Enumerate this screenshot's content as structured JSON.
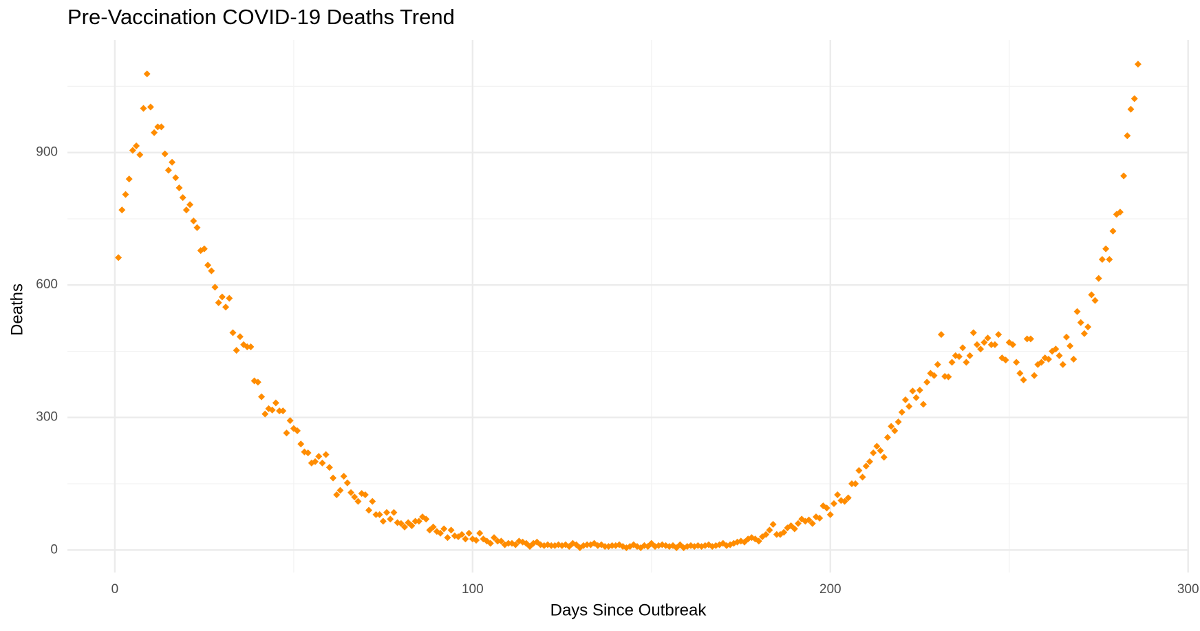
{
  "chart_data": {
    "type": "scatter",
    "title": "Pre-Vaccination COVID-19 Deaths Trend",
    "x_label": "Days Since Outbreak",
    "y_label": "Deaths",
    "xlim": [
      -13.25,
      300.25
    ],
    "ylim": [
      -51,
      1155
    ],
    "xticks": [
      0,
      100,
      200,
      300
    ],
    "yticks": [
      0,
      300,
      600,
      900
    ],
    "grid": true,
    "color": "#ff8c00",
    "marker": "diamond",
    "x": [
      1,
      2,
      3,
      4,
      5,
      6,
      7,
      8,
      9,
      10,
      11,
      12,
      13,
      14,
      15,
      16,
      17,
      18,
      19,
      20,
      21,
      22,
      23,
      24,
      25,
      26,
      27,
      28,
      29,
      30,
      31,
      32,
      33,
      34,
      35,
      36,
      37,
      38,
      39,
      40,
      41,
      42,
      43,
      44,
      45,
      46,
      47,
      48,
      49,
      50,
      51,
      52,
      53,
      54,
      55,
      56,
      57,
      58,
      59,
      60,
      61,
      62,
      63,
      64,
      65,
      66,
      67,
      68,
      69,
      70,
      71,
      72,
      73,
      74,
      75,
      76,
      77,
      78,
      79,
      80,
      81,
      82,
      83,
      84,
      85,
      86,
      87,
      88,
      89,
      90,
      91,
      92,
      93,
      94,
      95,
      96,
      97,
      98,
      99,
      100,
      101,
      102,
      103,
      104,
      105,
      106,
      107,
      108,
      109,
      110,
      111,
      112,
      113,
      114,
      115,
      116,
      117,
      118,
      119,
      120,
      121,
      122,
      123,
      124,
      125,
      126,
      127,
      128,
      129,
      130,
      131,
      132,
      133,
      134,
      135,
      136,
      137,
      138,
      139,
      140,
      141,
      142,
      143,
      144,
      145,
      146,
      147,
      148,
      149,
      150,
      151,
      152,
      153,
      154,
      155,
      156,
      157,
      158,
      159,
      160,
      161,
      162,
      163,
      164,
      165,
      166,
      167,
      168,
      169,
      170,
      171,
      172,
      173,
      174,
      175,
      176,
      177,
      178,
      179,
      180,
      181,
      182,
      183,
      184,
      185,
      186,
      187,
      188,
      189,
      190,
      191,
      192,
      193,
      194,
      195,
      196,
      197,
      198,
      199,
      200,
      201,
      202,
      203,
      204,
      205,
      206,
      207,
      208,
      209,
      210,
      211,
      212,
      213,
      214,
      215,
      216,
      217,
      218,
      219,
      220,
      221,
      222,
      223,
      224,
      225,
      226,
      227,
      228,
      229,
      230,
      231,
      232,
      233,
      234,
      235,
      236,
      237,
      238,
      239,
      240,
      241,
      242,
      243,
      244,
      245,
      246,
      247,
      248,
      249,
      250,
      251,
      252,
      253,
      254,
      255,
      256,
      257,
      258,
      259,
      260,
      261,
      262,
      263,
      264,
      265,
      266,
      267,
      268,
      269,
      270,
      271,
      272,
      273,
      274,
      275,
      276,
      277,
      278,
      279,
      280,
      281,
      282,
      283,
      284,
      285,
      286
    ],
    "values": [
      662,
      770,
      805,
      840,
      905,
      915,
      895,
      1000,
      1078,
      1003,
      945,
      958,
      958,
      897,
      860,
      878,
      843,
      820,
      798,
      770,
      782,
      745,
      730,
      678,
      682,
      645,
      632,
      595,
      560,
      573,
      550,
      570,
      492,
      452,
      483,
      465,
      460,
      460,
      383,
      380,
      347,
      308,
      320,
      317,
      333,
      315,
      315,
      265,
      293,
      275,
      270,
      240,
      222,
      220,
      197,
      200,
      212,
      197,
      216,
      187,
      163,
      125,
      135,
      167,
      152,
      130,
      120,
      110,
      128,
      125,
      90,
      110,
      80,
      80,
      65,
      85,
      70,
      85,
      62,
      60,
      52,
      62,
      55,
      65,
      65,
      75,
      70,
      45,
      52,
      42,
      38,
      48,
      28,
      45,
      32,
      30,
      35,
      25,
      38,
      25,
      22,
      38,
      25,
      20,
      15,
      28,
      20,
      20,
      12,
      15,
      15,
      12,
      20,
      18,
      15,
      8,
      15,
      18,
      12,
      10,
      12,
      10,
      10,
      12,
      10,
      12,
      8,
      15,
      12,
      5,
      10,
      12,
      12,
      15,
      10,
      12,
      8,
      8,
      10,
      10,
      12,
      8,
      5,
      8,
      12,
      8,
      5,
      10,
      8,
      15,
      8,
      10,
      12,
      10,
      8,
      10,
      5,
      12,
      5,
      8,
      10,
      8,
      10,
      8,
      10,
      12,
      8,
      10,
      12,
      15,
      10,
      12,
      15,
      18,
      20,
      18,
      25,
      28,
      25,
      20,
      30,
      35,
      45,
      58,
      35,
      35,
      40,
      50,
      55,
      48,
      60,
      70,
      65,
      68,
      60,
      75,
      72,
      100,
      95,
      80,
      105,
      125,
      112,
      110,
      118,
      150,
      150,
      180,
      165,
      190,
      200,
      220,
      235,
      225,
      210,
      255,
      280,
      270,
      290,
      312,
      340,
      325,
      360,
      345,
      362,
      330,
      380,
      400,
      395,
      420,
      488,
      393,
      392,
      425,
      440,
      438,
      458,
      425,
      440,
      492,
      465,
      455,
      470,
      480,
      465,
      465,
      488,
      435,
      430,
      470,
      465,
      425,
      400,
      385,
      478,
      478,
      395,
      420,
      425,
      435,
      432,
      450,
      455,
      440,
      420,
      482,
      462,
      432,
      540,
      515,
      490,
      505,
      578,
      565,
      615,
      658,
      682,
      658,
      722,
      760,
      765,
      847,
      938,
      998,
      1022,
      1100
    ]
  }
}
